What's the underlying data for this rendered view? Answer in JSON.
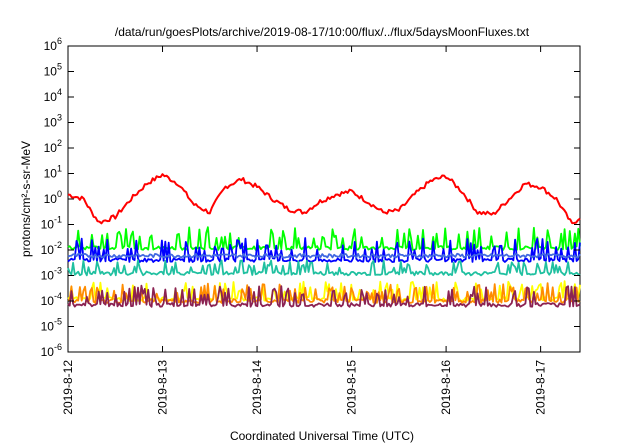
{
  "chart_data": {
    "type": "line",
    "title": "/data/run/goesPlots/archive/2019-08-17/10:00/flux/../flux/5daysMoonFluxes.txt",
    "xlabel": "Coordinated Universal Time (UTC)",
    "ylabel": "protons/cm²-s-sr-MeV",
    "y_scale": "log",
    "ylim": [
      1e-06,
      1000000.0
    ],
    "y_ticks": [
      {
        "base": "10",
        "exp": "-6"
      },
      {
        "base": "10",
        "exp": "-5"
      },
      {
        "base": "10",
        "exp": "-4"
      },
      {
        "base": "10",
        "exp": "-3"
      },
      {
        "base": "10",
        "exp": "-2"
      },
      {
        "base": "10",
        "exp": "-1"
      },
      {
        "base": "10",
        "exp": "0"
      },
      {
        "base": "10",
        "exp": "1"
      },
      {
        "base": "10",
        "exp": "2"
      },
      {
        "base": "10",
        "exp": "3"
      },
      {
        "base": "10",
        "exp": "4"
      },
      {
        "base": "10",
        "exp": "5"
      },
      {
        "base": "10",
        "exp": "6"
      }
    ],
    "x_range_days": [
      "2019-08-12",
      "2019-08-17 10:00"
    ],
    "x_tick_labels": [
      "2019-8-12",
      "2019-8-13",
      "2019-8-14",
      "2019-8-15",
      "2019-8-16",
      "2019-8-17"
    ],
    "grid": false,
    "legend": "none",
    "series": [
      {
        "color": "#ff0000",
        "x": [
          "2019-08-12 00:00",
          "2019-08-12 04:00",
          "2019-08-12 06:00",
          "2019-08-12 08:00",
          "2019-08-12 12:00",
          "2019-08-12 16:00",
          "2019-08-12 20:00",
          "2019-08-13 00:00",
          "2019-08-13 04:00",
          "2019-08-13 08:00",
          "2019-08-13 12:00",
          "2019-08-13 14:00",
          "2019-08-13 16:00",
          "2019-08-13 20:00",
          "2019-08-14 00:00",
          "2019-08-14 04:00",
          "2019-08-14 08:00",
          "2019-08-14 12:00",
          "2019-08-14 16:00",
          "2019-08-14 20:00",
          "2019-08-15 00:00",
          "2019-08-15 04:00",
          "2019-08-15 08:00",
          "2019-08-15 12:00",
          "2019-08-15 16:00",
          "2019-08-15 20:00",
          "2019-08-16 00:00",
          "2019-08-16 04:00",
          "2019-08-16 08:00",
          "2019-08-16 12:00",
          "2019-08-16 16:00",
          "2019-08-16 20:00",
          "2019-08-17 00:00",
          "2019-08-17 04:00",
          "2019-08-17 08:00",
          "2019-08-17 10:00"
        ],
        "values": [
          1.5,
          1.0,
          0.3,
          0.12,
          0.2,
          1.0,
          4.0,
          9.0,
          4.0,
          0.6,
          0.3,
          1.0,
          3.0,
          6.0,
          3.0,
          1.0,
          0.4,
          0.3,
          0.8,
          1.5,
          2.0,
          0.8,
          0.3,
          0.35,
          1.5,
          5.0,
          8.0,
          2.0,
          0.3,
          0.25,
          1.0,
          4.0,
          3.0,
          1.0,
          0.1,
          0.2
        ]
      },
      {
        "color": "#00ff00",
        "x": [
          "2019-08-12",
          "2019-08-17 10:00"
        ],
        "values": [
          0.012,
          0.012
        ],
        "spiky": true,
        "spike_max": 0.08
      },
      {
        "color": "#0000ff",
        "x": [
          "2019-08-12",
          "2019-08-17 10:00"
        ],
        "values": [
          0.004,
          0.004
        ],
        "spiky": true,
        "spike_max": 0.03
      },
      {
        "color": "#4169e1",
        "x": [
          "2019-08-12",
          "2019-08-17 10:00"
        ],
        "values": [
          0.006,
          0.006
        ],
        "spiky": false
      },
      {
        "color": "#20c0a0",
        "x": [
          "2019-08-12",
          "2019-08-17 10:00"
        ],
        "values": [
          0.0012,
          0.0012
        ],
        "spiky": true,
        "spike_max": 0.004
      },
      {
        "color": "#ffff00",
        "x": [
          "2019-08-12",
          "2019-08-17 10:00"
        ],
        "values": [
          0.00012,
          0.00012
        ],
        "spiky": true,
        "spike_max": 0.0006
      },
      {
        "color": "#ff8c00",
        "x": [
          "2019-08-12",
          "2019-08-17 10:00"
        ],
        "values": [
          0.0001,
          0.0001
        ],
        "spiky": true,
        "spike_max": 0.0005
      },
      {
        "color": "#8b2252",
        "x": [
          "2019-08-12",
          "2019-08-17 10:00"
        ],
        "values": [
          7e-05,
          7e-05
        ],
        "spiky": true,
        "spike_max": 0.0004
      }
    ]
  }
}
